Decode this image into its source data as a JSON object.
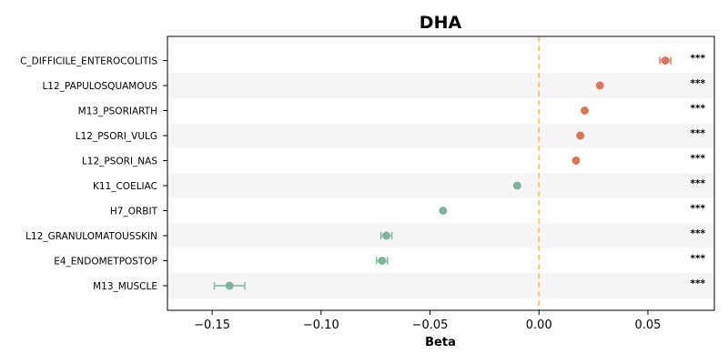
{
  "chart_data": {
    "type": "forest",
    "title": "DHA",
    "xlabel": "Beta",
    "ylabel": "",
    "xlim": [
      -0.1705,
      0.0805
    ],
    "xticks": [
      -0.15,
      -0.1,
      -0.05,
      0.0,
      0.05
    ],
    "xtick_labels": [
      "−0.15",
      "−0.10",
      "−0.05",
      "0.00",
      "0.05"
    ],
    "reference_line": 0,
    "grid": false,
    "row_banding": true,
    "colors": {
      "positive": "#d9775e",
      "negative": "#7fb39a",
      "reference_line": "#f6c683",
      "band": "#f5f5f5"
    },
    "rows": [
      {
        "label": "C_DIFFICILE_ENTEROCOLITIS",
        "beta": 0.058,
        "ci_low": 0.0555,
        "ci_high": 0.0605,
        "sig": "***"
      },
      {
        "label": "L12_PAPULOSQUAMOUS",
        "beta": 0.028,
        "ci_low": 0.028,
        "ci_high": 0.028,
        "sig": "***"
      },
      {
        "label": "M13_PSORIARTH",
        "beta": 0.021,
        "ci_low": 0.021,
        "ci_high": 0.021,
        "sig": "***"
      },
      {
        "label": "L12_PSORI_VULG",
        "beta": 0.019,
        "ci_low": 0.019,
        "ci_high": 0.019,
        "sig": "***"
      },
      {
        "label": "L12_PSORI_NAS",
        "beta": 0.017,
        "ci_low": 0.017,
        "ci_high": 0.017,
        "sig": "***"
      },
      {
        "label": "K11_COELIAC",
        "beta": -0.01,
        "ci_low": -0.01,
        "ci_high": -0.01,
        "sig": "***"
      },
      {
        "label": "H7_ORBIT",
        "beta": -0.044,
        "ci_low": -0.044,
        "ci_high": -0.044,
        "sig": "***"
      },
      {
        "label": "L12_GRANULOMATOUSSKIN",
        "beta": -0.07,
        "ci_low": -0.0725,
        "ci_high": -0.0675,
        "sig": "***"
      },
      {
        "label": "E4_ENDOMETPOSTOP",
        "beta": -0.072,
        "ci_low": -0.0745,
        "ci_high": -0.0695,
        "sig": "***"
      },
      {
        "label": "M13_MUSCLE",
        "beta": -0.142,
        "ci_low": -0.149,
        "ci_high": -0.135,
        "sig": "***"
      }
    ]
  }
}
